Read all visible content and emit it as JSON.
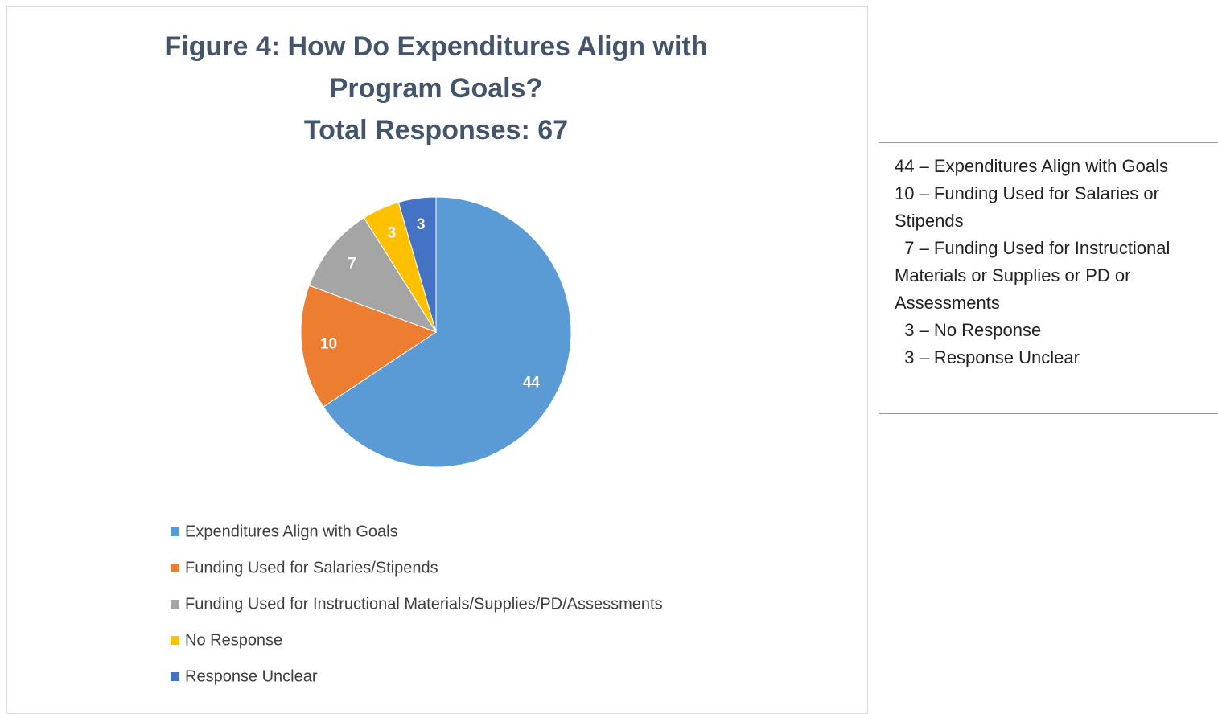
{
  "chart_data": {
    "type": "pie",
    "title": "Figure 4: How Do Expenditures Align with Program Goals?",
    "subtitle": "Total Responses: 67",
    "categories": [
      "Expenditures Align with Goals",
      "Funding Used for Salaries/Stipends",
      "Funding Used for Instructional Materials/Supplies/PD/Assessments",
      "No Response",
      "Response Unclear"
    ],
    "values": [
      44,
      10,
      7,
      3,
      3
    ],
    "colors": [
      "#5b9bd5",
      "#ed7d31",
      "#a5a5a5",
      "#ffc000",
      "#4472c4"
    ],
    "legend": "bottom",
    "annotation": [
      "44 – Expenditures Align with Goals",
      "10 – Funding Used for Salaries or Stipends",
      "  7 – Funding Used for Instructional Materials or Supplies or PD or Assessments",
      "  3 – No Response",
      "  3 – Response Unclear"
    ]
  }
}
